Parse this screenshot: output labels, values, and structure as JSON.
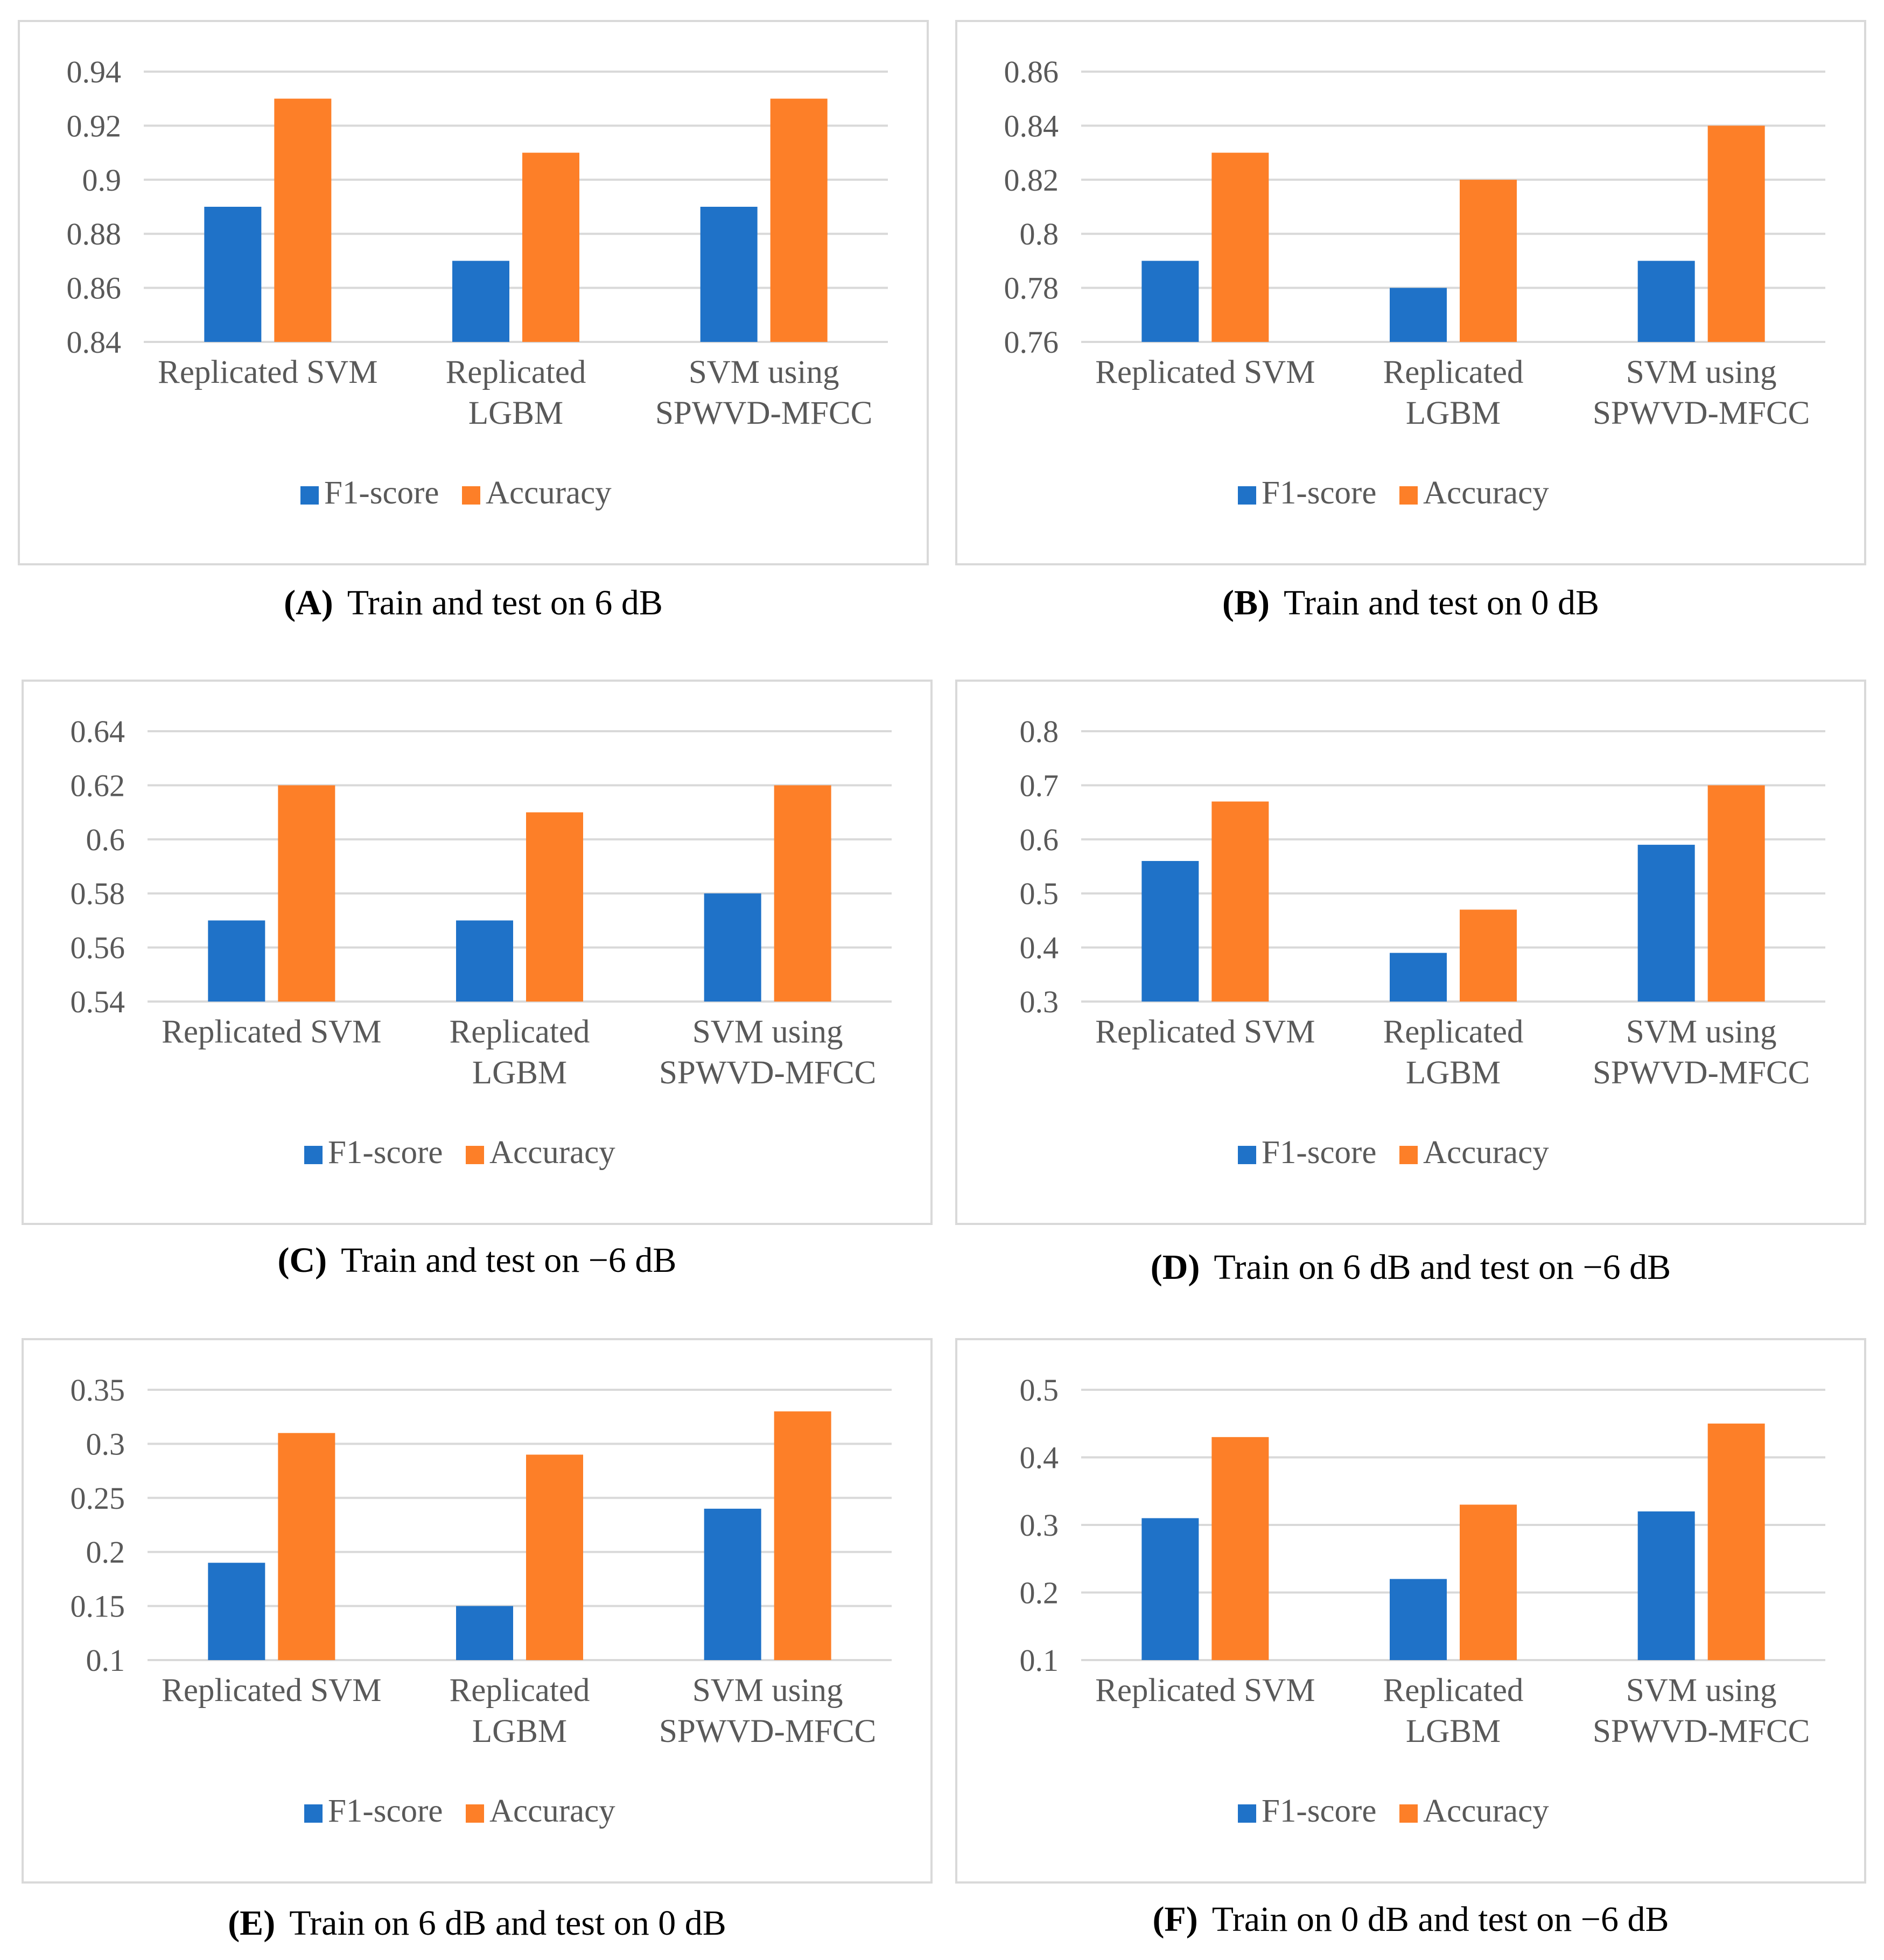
{
  "colors": {
    "f1": "#1f72c8",
    "accuracy": "#fd7f28",
    "grid": "#d9d9d9",
    "text": "#595959"
  },
  "chart_data": [
    {
      "type": "bar",
      "panel_label": "(A)",
      "caption": "Train and test on 6 dB",
      "categories": [
        [
          "Replicated SVM"
        ],
        [
          "Replicated",
          "LGBM"
        ],
        [
          "SVM using",
          "SPWVD-MFCC"
        ]
      ],
      "series": [
        {
          "name": "F1-score",
          "values": [
            0.89,
            0.87,
            0.89
          ]
        },
        {
          "name": "Accuracy",
          "values": [
            0.93,
            0.91,
            0.93
          ]
        }
      ],
      "ylim": [
        0.84,
        0.94
      ],
      "yticks": [
        "0.84",
        "0.86",
        "0.88",
        "0.9",
        "0.92",
        "0.94"
      ],
      "legend": "bottom"
    },
    {
      "type": "bar",
      "panel_label": "(B)",
      "caption": "Train and test on 0 dB",
      "categories": [
        [
          "Replicated SVM"
        ],
        [
          "Replicated",
          "LGBM"
        ],
        [
          "SVM using",
          "SPWVD-MFCC"
        ]
      ],
      "series": [
        {
          "name": "F1-score",
          "values": [
            0.79,
            0.78,
            0.79
          ]
        },
        {
          "name": "Accuracy",
          "values": [
            0.83,
            0.82,
            0.84
          ]
        }
      ],
      "ylim": [
        0.76,
        0.86
      ],
      "yticks": [
        "0.76",
        "0.78",
        "0.8",
        "0.82",
        "0.84",
        "0.86"
      ],
      "legend": "bottom"
    },
    {
      "type": "bar",
      "panel_label": "(C)",
      "caption": "Train and test on −6 dB",
      "categories": [
        [
          "Replicated SVM"
        ],
        [
          "Replicated",
          "LGBM"
        ],
        [
          "SVM using",
          "SPWVD-MFCC"
        ]
      ],
      "series": [
        {
          "name": "F1-score",
          "values": [
            0.57,
            0.57,
            0.58
          ]
        },
        {
          "name": "Accuracy",
          "values": [
            0.62,
            0.61,
            0.62
          ]
        }
      ],
      "ylim": [
        0.54,
        0.64
      ],
      "yticks": [
        "0.54",
        "0.56",
        "0.58",
        "0.6",
        "0.62",
        "0.64"
      ],
      "legend": "bottom"
    },
    {
      "type": "bar",
      "panel_label": "(D)",
      "caption": "Train on 6 dB and test on −6 dB",
      "categories": [
        [
          "Replicated SVM"
        ],
        [
          "Replicated",
          "LGBM"
        ],
        [
          "SVM using",
          "SPWVD-MFCC"
        ]
      ],
      "series": [
        {
          "name": "F1-score",
          "values": [
            0.56,
            0.39,
            0.59
          ]
        },
        {
          "name": "Accuracy",
          "values": [
            0.67,
            0.47,
            0.7
          ]
        }
      ],
      "ylim": [
        0.3,
        0.8
      ],
      "yticks": [
        "0.3",
        "0.4",
        "0.5",
        "0.6",
        "0.7",
        "0.8"
      ],
      "legend": "bottom"
    },
    {
      "type": "bar",
      "panel_label": "(E)",
      "caption": "Train on 6 dB and test on 0 dB",
      "categories": [
        [
          "Replicated SVM"
        ],
        [
          "Replicated",
          "LGBM"
        ],
        [
          "SVM using",
          "SPWVD-MFCC"
        ]
      ],
      "series": [
        {
          "name": "F1-score",
          "values": [
            0.19,
            0.15,
            0.24
          ]
        },
        {
          "name": "Accuracy",
          "values": [
            0.31,
            0.29,
            0.33
          ]
        }
      ],
      "ylim": [
        0.1,
        0.35
      ],
      "yticks": [
        "0.1",
        "0.15",
        "0.2",
        "0.25",
        "0.3",
        "0.35"
      ],
      "legend": "bottom"
    },
    {
      "type": "bar",
      "panel_label": "(F)",
      "caption": "Train on 0 dB and test on −6 dB",
      "categories": [
        [
          "Replicated SVM"
        ],
        [
          "Replicated",
          "LGBM"
        ],
        [
          "SVM using",
          "SPWVD-MFCC"
        ]
      ],
      "series": [
        {
          "name": "F1-score",
          "values": [
            0.31,
            0.22,
            0.32
          ]
        },
        {
          "name": "Accuracy",
          "values": [
            0.43,
            0.33,
            0.45
          ]
        }
      ],
      "ylim": [
        0.1,
        0.5
      ],
      "yticks": [
        "0.1",
        "0.2",
        "0.3",
        "0.4",
        "0.5"
      ],
      "legend": "bottom"
    }
  ]
}
